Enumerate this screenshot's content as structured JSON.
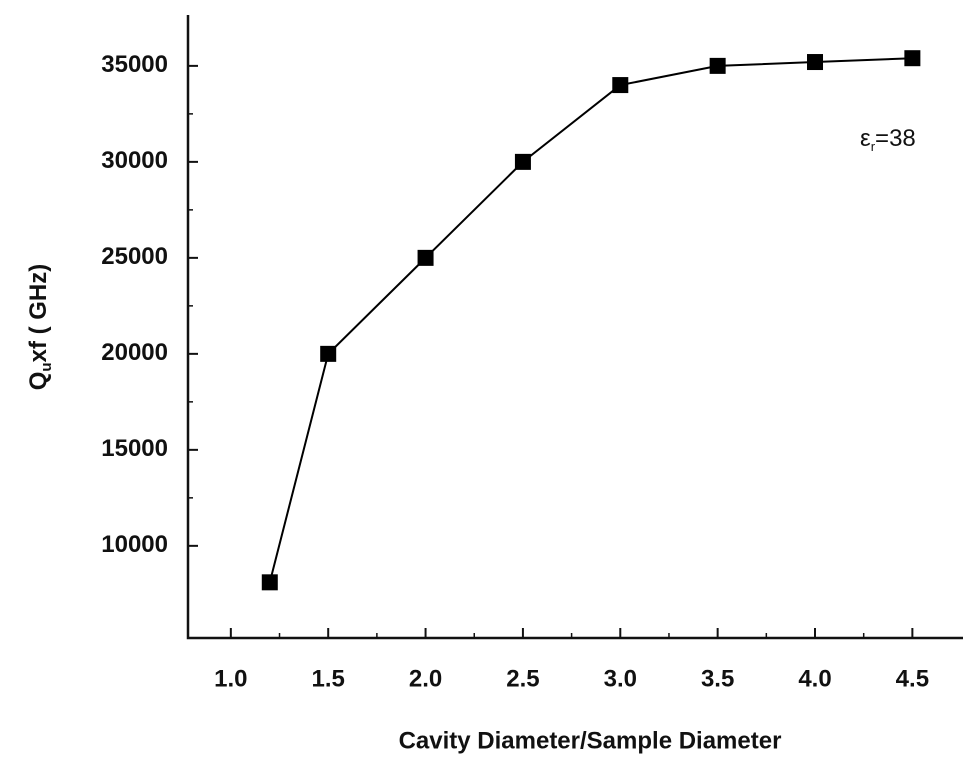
{
  "chart_data": {
    "type": "line",
    "x_label": "Cavity Diameter/Sample Diameter",
    "y_label": {
      "main": "Q",
      "subscript": "u",
      "rest": "xf ( GHz)"
    },
    "annotation": {
      "symbol": "ε",
      "subscript": "r",
      "rest": "=38"
    },
    "x": [
      1.2,
      1.5,
      2.0,
      2.5,
      3.0,
      3.5,
      4.0,
      4.5
    ],
    "series": [
      {
        "name": "Qu x f",
        "color": "#000000",
        "values": [
          8100,
          20000,
          25000,
          30000,
          34000,
          35000,
          35200,
          35400
        ]
      }
    ],
    "xlim": [
      0.78,
      4.76
    ],
    "ylim": [
      5200,
      37650
    ],
    "xticks": [
      {
        "value": 1,
        "label": "1.0"
      },
      {
        "value": 1.5,
        "label": "1.5"
      },
      {
        "value": 2,
        "label": "2.0"
      },
      {
        "value": 2.5,
        "label": "2.5"
      },
      {
        "value": 3,
        "label": "3.0"
      },
      {
        "value": 3.5,
        "label": "3.5"
      },
      {
        "value": 4,
        "label": "4.0"
      },
      {
        "value": 4.5,
        "label": "4.5"
      }
    ],
    "yticks": [
      10000,
      15000,
      20000,
      25000,
      30000,
      35000
    ],
    "grid": false
  }
}
